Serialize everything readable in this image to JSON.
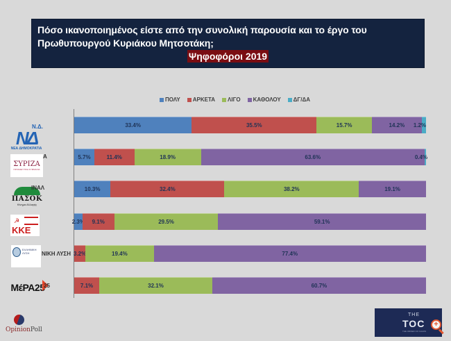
{
  "header": {
    "title_line1": "Πόσο ικανοποιημένος είστε από την συνολική παρουσία και το έργο του",
    "title_line2": "Πρωθυπουργού Κυριάκου Μητσοτάκη;",
    "subtitle": "Ψηφοφόροι 2019"
  },
  "colors": {
    "title_bg": "#14233f",
    "subtitle_bg": "#7a0d12",
    "poly": "#4f81bd",
    "arketa": "#c0504d",
    "ligo": "#9bbb59",
    "katholou": "#8064a2",
    "dgda": "#4bacc6",
    "background": "#d9d9d9"
  },
  "legend": [
    {
      "label": "ΠΟΛΥ",
      "color": "#4f81bd"
    },
    {
      "label": "ΑΡΚΕΤΑ",
      "color": "#c0504d"
    },
    {
      "label": "ΛΙΓΟ",
      "color": "#9bbb59"
    },
    {
      "label": "ΚΑΘΟΛΟΥ",
      "color": "#8064a2"
    },
    {
      "label": "ΔΓ/ΔΑ",
      "color": "#4bacc6"
    }
  ],
  "parties": {
    "nd": {
      "top": "Ν.Δ.",
      "mark": "ΝΔ",
      "sub": "ΝΕΑ ΔΗΜΟΚΡΑΤΙΑ"
    },
    "syriza": {
      "label": "ΣΥΡΙΖΑ",
      "mark": "ΣΥΡΙΖΑ",
      "sub": "ΠΡΟΟΔΕΥΤΙΚΗ ΣΥΜΜΑΧΙΑ"
    },
    "pasok": {
      "label": "ΚΙΝΑΛ",
      "mark": "ΠΑΣΟΚ",
      "sub": "Κίνημα Αλλαγής"
    },
    "kke": {
      "mark": "ΚΚΕ",
      "hs": "☭"
    },
    "el": {
      "label": "ΕΛΛΗΝΙΚΗ ΛΥΣΗ",
      "mark": "ΕΛΛΗΝΙΚΗ ΛΥΣΗ"
    },
    "mera": {
      "label": "ΜέΡΑ25",
      "mark": "ΜέΡΑ25"
    }
  },
  "logos": {
    "opinion_first": "Opinion",
    "opinion_second": "Poll",
    "toc_the": "THE",
    "toc_mark": "TOC",
    "toc_sub": "THE ORDER OF CHAOS",
    "zoom_symbol": "+"
  },
  "chart_data": {
    "type": "bar",
    "orientation": "horizontal",
    "stacked": true,
    "title": "Πόσο ικανοποιημένος είστε από την συνολική παρουσία και το έργο του Πρωθυπουργού Κυριάκου Μητσοτάκη;",
    "subtitle": "Ψηφοφόροι 2019",
    "xlabel": "",
    "ylabel": "",
    "xlim": [
      0,
      100
    ],
    "legend_position": "top",
    "grid": false,
    "categories": [
      "Ν.Δ.",
      "ΣΥΡΙΖΑ",
      "ΚΙΝΑΛ",
      "ΚΚΕ",
      "ΕΛΛΗΝΙΚΗ ΛΥΣΗ",
      "ΜέΡΑ25"
    ],
    "series": [
      {
        "name": "ΠΟΛΥ",
        "color": "#4f81bd",
        "values": [
          33.4,
          5.7,
          10.3,
          2.3,
          0,
          0
        ]
      },
      {
        "name": "ΑΡΚΕΤΑ",
        "color": "#c0504d",
        "values": [
          35.5,
          11.4,
          32.4,
          9.1,
          3.2,
          7.1
        ]
      },
      {
        "name": "ΛΙΓΟ",
        "color": "#9bbb59",
        "values": [
          15.7,
          18.9,
          38.2,
          29.5,
          19.4,
          32.1
        ]
      },
      {
        "name": "ΚΑΘΟΛΟΥ",
        "color": "#8064a2",
        "values": [
          14.2,
          63.6,
          19.1,
          59.1,
          77.4,
          60.7
        ]
      },
      {
        "name": "ΔΓ/ΔΑ",
        "color": "#4bacc6",
        "values": [
          1.2,
          0.4,
          0,
          0,
          0,
          0
        ]
      }
    ],
    "rows": [
      {
        "party": "Ν.Δ.",
        "segments": [
          {
            "series": "ΠΟΛΥ",
            "value": 33.4,
            "label": "33.4%"
          },
          {
            "series": "ΑΡΚΕΤΑ",
            "value": 35.5,
            "label": "35.5%"
          },
          {
            "series": "ΛΙΓΟ",
            "value": 15.7,
            "label": "15.7%"
          },
          {
            "series": "ΚΑΘΟΛΟΥ",
            "value": 14.2,
            "label": "14.2%"
          },
          {
            "series": "ΔΓ/ΔΑ",
            "value": 1.2,
            "label": "1.2%"
          }
        ]
      },
      {
        "party": "ΣΥΡΙΖΑ",
        "segments": [
          {
            "series": "ΠΟΛΥ",
            "value": 5.7,
            "label": "5.7%"
          },
          {
            "series": "ΑΡΚΕΤΑ",
            "value": 11.4,
            "label": "11.4%"
          },
          {
            "series": "ΛΙΓΟ",
            "value": 18.9,
            "label": "18.9%"
          },
          {
            "series": "ΚΑΘΟΛΟΥ",
            "value": 63.6,
            "label": "63.6%"
          },
          {
            "series": "ΔΓ/ΔΑ",
            "value": 0.4,
            "label": "0.4%"
          }
        ]
      },
      {
        "party": "ΚΙΝΑΛ",
        "segments": [
          {
            "series": "ΠΟΛΥ",
            "value": 10.3,
            "label": "10.3%"
          },
          {
            "series": "ΑΡΚΕΤΑ",
            "value": 32.4,
            "label": "32.4%"
          },
          {
            "series": "ΛΙΓΟ",
            "value": 38.2,
            "label": "38.2%"
          },
          {
            "series": "ΚΑΘΟΛΟΥ",
            "value": 19.1,
            "label": "19.1%"
          }
        ]
      },
      {
        "party": "ΚΚΕ",
        "segments": [
          {
            "series": "ΠΟΛΥ",
            "value": 2.3,
            "label": "2.3%"
          },
          {
            "series": "ΑΡΚΕΤΑ",
            "value": 9.1,
            "label": "9.1%"
          },
          {
            "series": "ΛΙΓΟ",
            "value": 29.5,
            "label": "29.5%"
          },
          {
            "series": "ΚΑΘΟΛΟΥ",
            "value": 59.1,
            "label": "59.1%"
          }
        ]
      },
      {
        "party": "ΕΛΛΗΝΙΚΗ ΛΥΣΗ",
        "segments": [
          {
            "series": "ΑΡΚΕΤΑ",
            "value": 3.2,
            "label": "3.2%"
          },
          {
            "series": "ΛΙΓΟ",
            "value": 19.4,
            "label": "19.4%"
          },
          {
            "series": "ΚΑΘΟΛΟΥ",
            "value": 77.4,
            "label": "77.4%"
          }
        ]
      },
      {
        "party": "ΜέΡΑ25",
        "segments": [
          {
            "series": "ΑΡΚΕΤΑ",
            "value": 7.1,
            "label": "7.1%"
          },
          {
            "series": "ΛΙΓΟ",
            "value": 32.1,
            "label": "32.1%"
          },
          {
            "series": "ΚΑΘΟΛΟΥ",
            "value": 60.7,
            "label": "60.7%"
          }
        ]
      }
    ]
  }
}
